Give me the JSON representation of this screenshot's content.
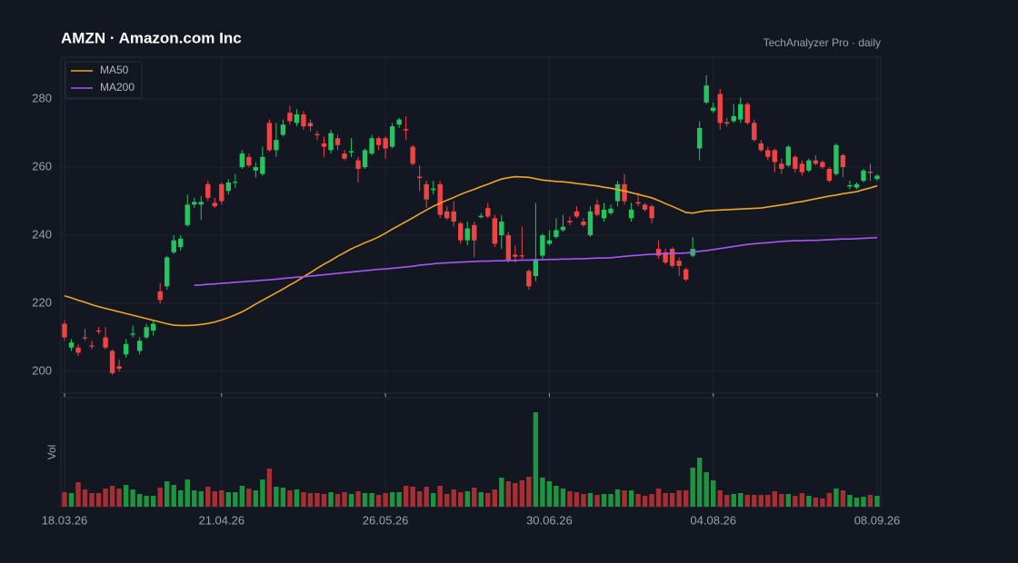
{
  "chart_data": {
    "type": "candlestick",
    "title": "AMZN  ·  Amazon.com Inc",
    "subtitle": "TechAnalyzer Pro · daily",
    "volume_label": "Vol",
    "categories": [
      "18.03.26",
      null,
      null,
      null,
      null,
      null,
      null,
      null,
      null,
      null,
      null,
      null,
      null,
      null,
      null,
      null,
      null,
      null,
      null,
      null,
      null,
      null,
      null,
      "21.04.26",
      null,
      null,
      null,
      null,
      null,
      null,
      null,
      null,
      null,
      null,
      null,
      null,
      null,
      null,
      null,
      null,
      null,
      null,
      null,
      null,
      null,
      null,
      null,
      "26.05.26",
      null,
      null,
      null,
      null,
      null,
      null,
      null,
      null,
      null,
      null,
      null,
      null,
      null,
      null,
      null,
      null,
      null,
      null,
      null,
      null,
      null,
      null,
      null,
      "30.06.26",
      null,
      null,
      null,
      null,
      null,
      null,
      null,
      null,
      null,
      null,
      null,
      null,
      null,
      null,
      null,
      null,
      null,
      null,
      null,
      null,
      null,
      null,
      null,
      "04.08.26",
      null,
      null,
      null,
      null,
      null,
      null,
      null,
      null,
      null,
      null,
      null,
      null,
      null,
      null,
      null,
      null,
      null,
      null,
      null,
      null,
      null,
      null,
      null,
      "08.09.26"
    ],
    "open": [
      214,
      207,
      207,
      210,
      207.6,
      212,
      210,
      206,
      201.5,
      205,
      210.8,
      206,
      210,
      212,
      223.5,
      225,
      235,
      236.5,
      243,
      249,
      249,
      255,
      249.5,
      255,
      253,
      255.4,
      260,
      263,
      259,
      258,
      273,
      265,
      269.5,
      276,
      273,
      275.5,
      273,
      269.7,
      267,
      265,
      268.5,
      264,
      264.3,
      262,
      260,
      264,
      268.5,
      268.5,
      266,
      272.5,
      271.2,
      266,
      257.2,
      255,
      253.3,
      255,
      247,
      247,
      243.5,
      238.5,
      243,
      245.3,
      248,
      245,
      240,
      240,
      234.3,
      234.1,
      229.5,
      228,
      234,
      237.5,
      239.5,
      241.5,
      244.2,
      247,
      244,
      240,
      249,
      245,
      246.5,
      250,
      255,
      245,
      249.7,
      249,
      248.5,
      236,
      235,
      236,
      232.5,
      230,
      234,
      265.5,
      279,
      276.5,
      281.5,
      273.2,
      273.5,
      274,
      278.5,
      273,
      267,
      265,
      265,
      261,
      260.5,
      263,
      261,
      259,
      262,
      261.5,
      259.5,
      258,
      263.5,
      254.3,
      254,
      256,
      258.7,
      256.5
    ],
    "high": [
      215,
      209.5,
      208,
      212.5,
      209,
      213,
      213,
      206.5,
      203.5,
      209.5,
      213.5,
      210,
      214,
      215,
      226,
      234,
      240,
      240,
      252,
      251,
      251.5,
      256,
      251,
      255.5,
      256.5,
      258,
      265,
      264,
      261.5,
      266,
      274,
      273,
      274,
      278,
      277,
      276.5,
      274,
      270.5,
      269,
      271,
      269.5,
      265,
      268.5,
      263,
      265.5,
      269.5,
      269,
      269,
      273,
      274.5,
      275,
      266.5,
      260.5,
      256,
      256,
      256,
      248.5,
      250,
      244,
      244,
      244,
      246.5,
      249.5,
      246,
      246,
      241,
      237,
      242.5,
      230,
      249.5,
      240.5,
      241.5,
      245,
      246,
      245.5,
      248.5,
      245,
      248.5,
      250.5,
      249.5,
      249,
      256,
      258,
      249.5,
      252.5,
      249.5,
      249,
      238.5,
      236,
      236.5,
      233.5,
      230.5,
      239.5,
      273.5,
      287,
      279,
      283,
      274.5,
      278.5,
      280.5,
      279,
      274,
      268,
      266,
      265.5,
      262.5,
      266.5,
      263.5,
      262,
      262.5,
      263.5,
      262,
      260,
      267,
      264,
      256,
      255.5,
      259.5,
      261,
      258
    ],
    "low": [
      209,
      206,
      204.5,
      209,
      206.5,
      211,
      206.5,
      199,
      200,
      204,
      210,
      205,
      209.5,
      210.5,
      220,
      224,
      234.5,
      235.5,
      242.5,
      248,
      244.5,
      250,
      248,
      249,
      252,
      254,
      259.5,
      260,
      257,
      257.5,
      264.5,
      263,
      269,
      272.5,
      272,
      271,
      270.5,
      268,
      263,
      264,
      265,
      262,
      263,
      255.5,
      259.5,
      263.5,
      265,
      262.5,
      265.5,
      271.5,
      268,
      260.5,
      253,
      248,
      252,
      245,
      244.5,
      242.5,
      237.5,
      237,
      233.5,
      245,
      245,
      236.5,
      236,
      232,
      232,
      233,
      224,
      226.5,
      233,
      237,
      239,
      241,
      243,
      245,
      242.5,
      239.5,
      245.5,
      244,
      246,
      248.5,
      249,
      244,
      248.5,
      247,
      243.5,
      233,
      231.5,
      230.5,
      228,
      226.5,
      233.5,
      262,
      278.5,
      276,
      271,
      272,
      273,
      273,
      272.5,
      267.5,
      264.5,
      262,
      258.5,
      258,
      260,
      258.5,
      257.5,
      258.5,
      260.5,
      259.5,
      255.5,
      257.5,
      257,
      253.5,
      253.5,
      255.5,
      256,
      256
    ],
    "close": [
      210,
      208.5,
      205.5,
      209.8,
      207.3,
      211.7,
      207,
      199.5,
      200.8,
      208,
      211.1,
      209,
      213,
      214,
      221,
      233.5,
      238.5,
      239,
      249,
      249.8,
      249.8,
      251,
      248.5,
      250,
      255.5,
      255.7,
      264,
      260.5,
      260,
      263,
      265,
      268,
      272.5,
      273.5,
      275.5,
      272,
      272,
      269.4,
      266,
      270,
      266.5,
      262.5,
      264.7,
      259.5,
      265,
      268.5,
      266.5,
      265.5,
      272,
      274,
      270.8,
      261,
      256.8,
      250.5,
      253.7,
      246,
      245,
      244,
      238.5,
      242,
      238.5,
      245.7,
      245.5,
      237.5,
      244,
      232.5,
      233.7,
      233.9,
      225,
      233,
      240,
      238.5,
      241.5,
      242.5,
      243.8,
      245.5,
      243,
      247,
      246,
      247.5,
      247.8,
      255,
      250,
      247.5,
      249.3,
      247.5,
      245,
      234,
      232,
      231,
      231,
      227,
      236,
      271.5,
      284,
      277.5,
      273,
      272.8,
      275,
      278.5,
      273,
      268,
      265,
      263,
      261.5,
      259.5,
      266,
      259.5,
      258.5,
      262,
      261,
      260,
      256,
      266.5,
      260,
      254.7,
      255,
      259,
      258.3,
      257.5
    ],
    "volume": [
      16,
      15,
      27,
      19,
      15,
      15,
      20,
      23,
      20,
      24,
      19,
      14,
      12,
      12,
      21,
      28,
      24,
      18,
      30,
      18,
      17,
      22,
      17,
      18,
      16,
      16,
      23,
      20,
      18,
      30,
      42,
      22,
      21,
      18,
      19,
      16,
      15,
      15,
      14,
      16,
      14,
      16,
      14,
      17,
      15,
      15,
      13,
      15,
      16,
      16,
      23,
      22,
      17,
      22,
      15,
      23,
      14,
      19,
      16,
      17,
      21,
      16,
      15,
      19,
      32,
      28,
      26,
      29,
      33,
      104,
      32,
      28,
      23,
      20,
      17,
      16,
      14,
      15,
      13,
      14,
      14,
      19,
      18,
      18,
      14,
      12,
      14,
      20,
      15,
      15,
      18,
      18,
      43,
      54,
      38,
      29,
      18,
      13,
      14,
      15,
      13,
      13,
      13,
      13,
      17,
      14,
      14,
      12,
      15,
      12,
      10,
      9,
      15,
      20,
      18,
      13,
      10,
      11,
      13,
      12
    ],
    "series": [
      {
        "name": "MA50",
        "color": "#f0a526",
        "values": [
          222.2,
          221.6,
          220.9,
          220.3,
          219.6,
          219.0,
          218.5,
          218.0,
          217.5,
          217.0,
          216.5,
          216.0,
          215.5,
          215.0,
          214.5,
          214.0,
          213.6,
          213.5,
          213.5,
          213.6,
          213.8,
          214.1,
          214.5,
          215.1,
          215.8,
          216.6,
          217.5,
          218.6,
          219.8,
          220.9,
          222.0,
          223.1,
          224.2,
          225.4,
          226.5,
          227.8,
          229.0,
          230.3,
          231.5,
          232.6,
          233.8,
          234.9,
          236.0,
          236.9,
          237.8,
          238.6,
          239.5,
          240.6,
          241.8,
          242.9,
          244.0,
          245.1,
          246.3,
          247.4,
          248.5,
          249.4,
          250.3,
          251.1,
          252.0,
          252.8,
          253.5,
          254.3,
          255.0,
          255.8,
          256.5,
          256.9,
          257.2,
          257.1,
          257.0,
          256.6,
          256.2,
          256.0,
          255.8,
          255.7,
          255.5,
          255.2,
          255.0,
          254.7,
          254.5,
          254.1,
          253.8,
          253.4,
          253.0,
          252.5,
          252.0,
          251.5,
          251.0,
          250.2,
          249.3,
          248.5,
          247.6,
          246.7,
          246.5,
          246.9,
          247.2,
          247.3,
          247.4,
          247.5,
          247.6,
          247.7,
          247.8,
          247.9,
          248.0,
          248.3,
          248.6,
          248.9,
          249.2,
          249.6,
          249.9,
          250.3,
          250.7,
          251.1,
          251.5,
          251.8,
          252.2,
          252.5,
          252.8,
          253.4,
          253.9,
          254.5
        ]
      },
      {
        "name": "MA200",
        "color": "#a855f7",
        "values": [
          null,
          null,
          null,
          null,
          null,
          null,
          null,
          null,
          null,
          null,
          null,
          null,
          null,
          null,
          null,
          null,
          null,
          null,
          null,
          225.3,
          225.4,
          225.6,
          225.7,
          225.9,
          226.0,
          226.2,
          226.3,
          226.5,
          226.6,
          226.8,
          226.9,
          227.1,
          227.3,
          227.5,
          227.7,
          227.8,
          228.0,
          228.2,
          228.4,
          228.6,
          228.8,
          229.0,
          229.2,
          229.4,
          229.6,
          229.8,
          230.0,
          230.1,
          230.3,
          230.5,
          230.7,
          230.9,
          231.2,
          231.4,
          231.6,
          231.8,
          231.9,
          232.0,
          232.1,
          232.2,
          232.3,
          232.4,
          232.4,
          232.5,
          232.5,
          232.6,
          232.6,
          232.7,
          232.7,
          232.8,
          232.8,
          232.9,
          232.9,
          233.0,
          233.0,
          233.1,
          233.1,
          233.2,
          233.3,
          233.3,
          233.4,
          233.6,
          233.8,
          234.0,
          234.1,
          234.3,
          234.4,
          234.5,
          234.6,
          234.7,
          234.7,
          234.8,
          235.0,
          235.3,
          235.5,
          235.8,
          236.1,
          236.4,
          236.7,
          237.0,
          237.3,
          237.5,
          237.7,
          237.8,
          238.0,
          238.2,
          238.3,
          238.4,
          238.4,
          238.5,
          238.5,
          238.6,
          238.7,
          238.8,
          238.9,
          238.9,
          239.0,
          239.1,
          239.2,
          239.3
        ]
      }
    ],
    "up_color": "#22c55e",
    "down_color": "#ef4444",
    "volume_up_color": "#1f9440",
    "volume_down_color": "#a62f33",
    "ylim": [
      193.6,
      292.3
    ],
    "yticks": [
      200,
      220,
      240,
      260,
      280
    ],
    "vlim": [
      0,
      120
    ],
    "grid": true,
    "legend": "upper left"
  }
}
